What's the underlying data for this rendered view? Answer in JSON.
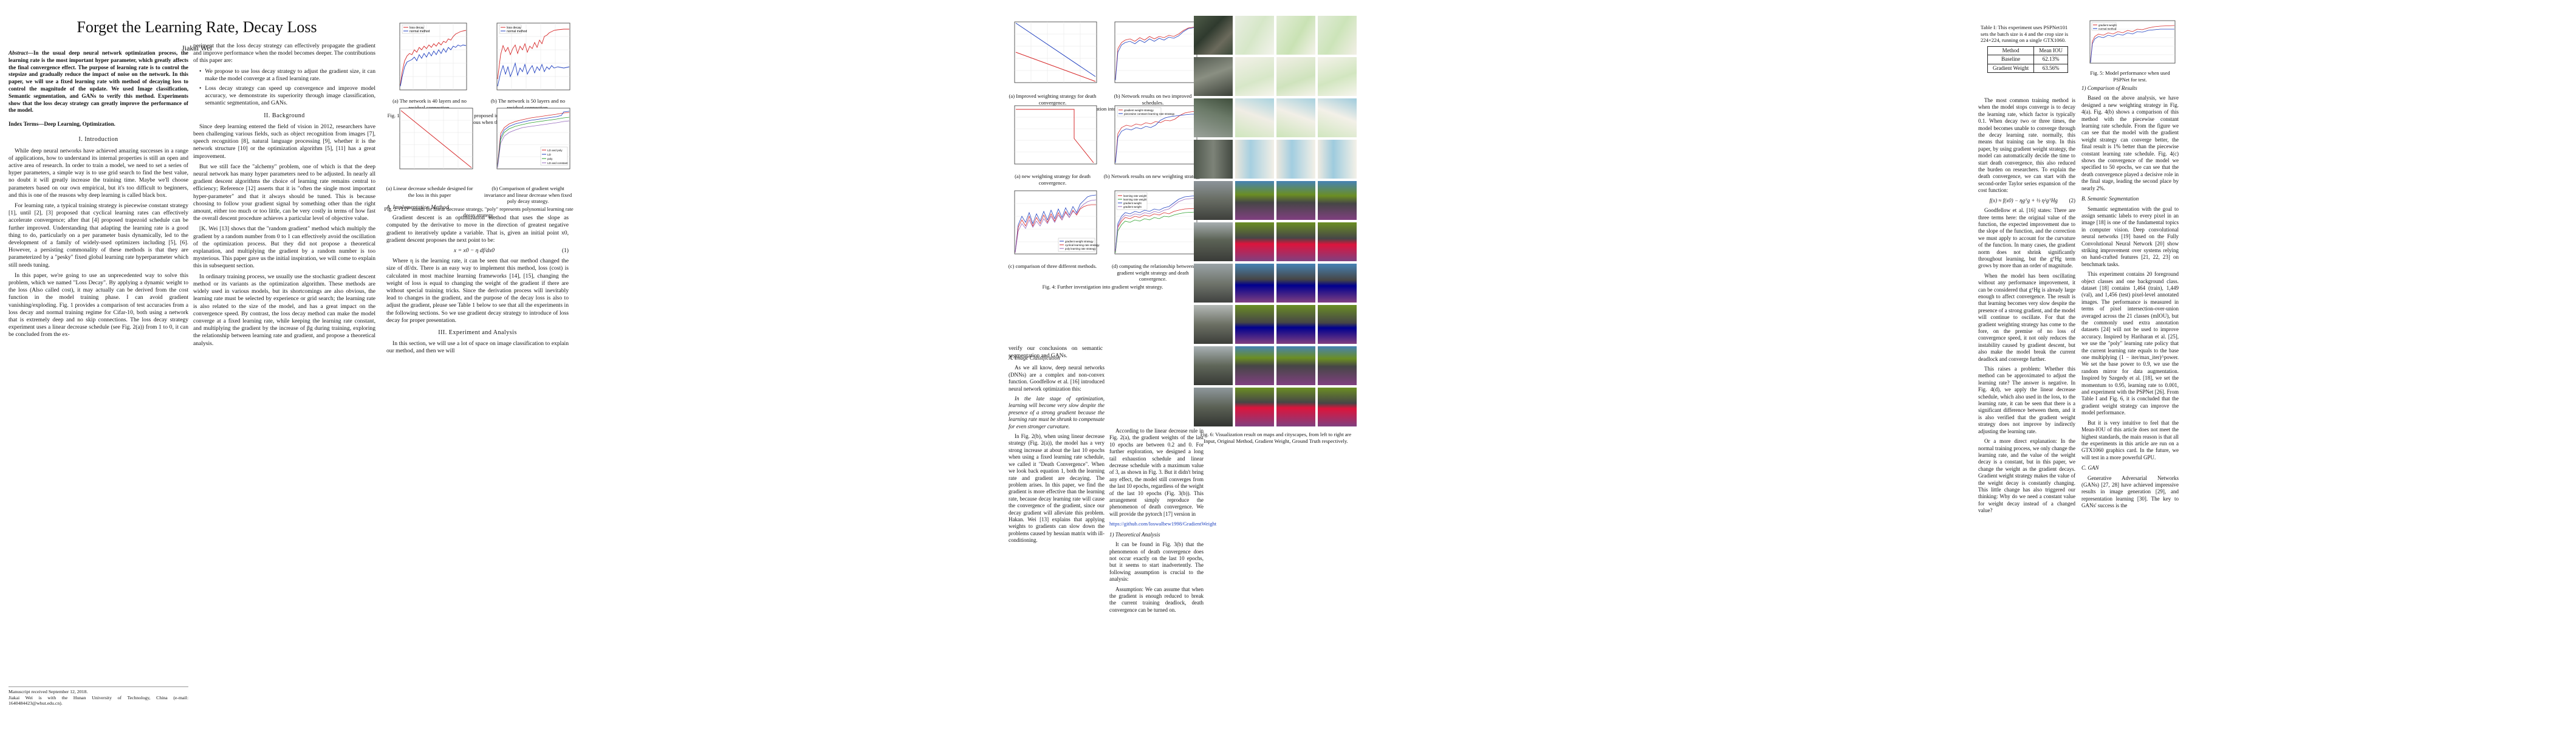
{
  "page1": {
    "title": "Forget the Learning Rate, Decay Loss",
    "author": "Jiakai Wei",
    "abstract_label": "Abstract",
    "abstract": "—In the usual deep neural network optimization process, the learning rate is the most important hyper parameter, which greatly affects the final convergence effect. The purpose of learning rate is to control the stepsize and gradually reduce the impact of noise on the network. In this paper, we will use a fixed learning rate with method of decaying loss to control the magnitude of the update. We used Image classification, Semantic segmentation, and GANs to verify this method. Experiments show that the loss decay strategy can greatly improve the performance of the model.",
    "index_terms": "Index Terms—Deep Learning, Optimization.",
    "sec1": "I. Introduction",
    "intro_p1": "While deep neural networks have achieved amazing successes in a range of applications, how to understand its internal properties is still an open and active area of research. In order to train a model, we need to set a series of hyper parameters, a simple way is to use grid search to find the best value, no doubt it will greatly increase the training time. Maybe we'll choose parameters based on our own empirical, but it's too difficult to beginners, and this is one of the reasons why deep learning is called black box.",
    "intro_p2": "For learning rate, a typical training strategy is piecewise constant strategy [1], until [2], [3] proposed that cyclical learning rates can effectively accelerate convergence; after that [4] proposed trapezoid schedule can be further improved. Understanding that adapting the learning rate is a good thing to do, particularly on a per parameter basis dynamically, led to the development of a family of widely-used optimizers including [5], [6]. However, a persisting commonality of these methods is that they are parameterized by a \"pesky\" fixed global learning rate hyperparameter which still needs tuning.",
    "intro_p3": "In this paper, we're going to use an unprecedented way to solve this problem, which we named \"Loss Decay\". By applying a dynamic weight to the loss (Also called cost), it may actually can be derived from the cost function in the model training phase. I can avoid gradient vanishing/exploding. Fig. 1 provides a comparison of test accuracies from a loss decay and normal training regime for Cifar-10, both using a network that is extremely deep and no skip connections. The loss decay strategy experiment uses a linear decrease schedule (see Fig. 2(a)) from 1 to 0, it can be concluded from the ex-",
    "footnote1": "Manuscript received September 12, 2018.",
    "footnote2": "Jiakai Wei is with the Hunan University of Technology, China (e-mail: 1640484423@whut.edu.cn)."
  },
  "page1b": {
    "cont": "periment that the loss decay strategy can effectively propagate the gradient and improve performance when the model becomes deeper. The contributions of this paper are:",
    "bullet1": "We propose to use loss decay strategy to adjust the gradient size, it can make the model converge at a fixed learning rate.",
    "bullet2": "Loss decay strategy can speed up convergence and improve model accuracy, we demonstrate its superiority through image classification, semantic segmentation, and GANs.",
    "sec2": "II. Background",
    "bg_p1": "Since deep learning entered the field of vision in 2012, researchers have been challenging various fields, such as object recognition from images [7], speech recognition [8], natural language processing [9], whether it is the network structure [10] or the optimization algorithm [5], [11] has a great improvement.",
    "bg_p2": "But we still face the \"alchemy\" problem, one of which is that the deep neural network has many hyper parameters need to be adjusted. In nearly all gradient descent algorithms the choice of learning rate remains central to efficiency; Reference [12] asserts that it is \"often the single most important hyper-parameter\" and that it always should be tuned. This is because choosing to follow your gradient signal by something other than the right amount, either too much or too little, can be very costly in terms of how fast the overall descent procedure achieves a particular level of objective value.",
    "bg_p3": "[K. Wei [13] shows that the \"random gradient\" method which multiply the gradient by a random number from 0 to 1 can effectively avoid the oscillation of the optimization process. But they did not propose a theoretical explanation, and multiplying the gradient by a random number is too mysterious. This paper gave us the initial inspiration, we will come to explain this in subsequent section.",
    "bg_p4": "In ordinary training process, we usually use the stochastic gradient descent method or its variants as the optimization algorithm. These methods are widely used in various models, but its shortcomings are also obvious, the learning rate must be selected by experience or grid search; the learning rate is also related to the size of the model, and has a great impact on the convergence speed. By contrast, the loss decay method can make the model converge at a fixed learning rate, while keeping the learning rate constant, and multiplying the gradient by the increase of βg during training, exploring the relationship between learning rate and gradient, and propose a theoretical analysis."
  },
  "fig1": {
    "caption_a": "(a) The network is 40 layers and no residual connection.",
    "caption_b": "(b) The network is 50 layers and no residual connection.",
    "caption": "Fig. 1: Loss decay represents the method proposed in this paper, it can be seen from the figure that the effect is more obvious when the network depth increases.",
    "legend": [
      "loss decay",
      "normal method"
    ]
  },
  "fig2": {
    "caption_a": "(a) Linear decrease schedule designed for the loss in this paper",
    "caption_b": "(b) Comparison of gradient weight invariance and linear decrease when fixed poly decay strategy.",
    "caption": "Fig. 2: \"LD\" stands for linear decrease strategy, \"poly\" represents polynomial learning rate decay strategy.",
    "legend": [
      "LD and poly",
      "LD",
      "poly",
      "LD and constant"
    ]
  },
  "sec2b": {
    "impl_h": "A. Implementation Method",
    "impl_p": "Gradient descent is an optimization method that uses the slope as computed by the derivative to move in the direction of greatest negative gradient to iteratively update a variable. That is, given an initial point x0, gradient descent proposes the next point to be:",
    "eq1": "x = x0 − η df/dx0",
    "eq1_num": "(1)",
    "impl_p2": "Where η is the learning rate, it can be seen that our method changed the size of df/dx. There is an easy way to implement this method, loss (cost) is calculated in most machine learning frameworks [14], [15], changing the weight of loss is equal to changing the weight of the gradient if there are without special training tricks. Since the derivation process will inevitably lead to changes in the gradient, and the purpose of the decay loss is also to adjust the gradient, please see Table 1 below to see that all the experiments in the following sections. So we use gradient decay strategy to introduce of loss decay for proper presentation.",
    "sec3": "III. Experiment and Analysis",
    "exp_p": "In this section, we will use a lot of space on image classification to explain our method, and then we will"
  },
  "fig3": {
    "caption_a": "(a) Improved weighting strategy for death convergence.",
    "caption_b": "(b) Network results on two improved schedules.",
    "caption": "Fig. 3: Further investigation into death convergence."
  },
  "fig4": {
    "caption_a": "(a) new weighting strategy for death convergence.",
    "caption_b": "(b) Network results on new weighting strategy.",
    "caption_c": "(c) comparison of three different methods.",
    "caption_d": "(d) computing the relationship between gradient weight strategy and death convergence.",
    "caption": "Fig. 4: Further investigation into gradient weight strategy.",
    "legend_b": [
      "gradient weight strategy",
      "piecewise constant learning rate strategy"
    ],
    "legend_c": [
      "gradient weight strategy",
      "cyclical learning rate strategy",
      "poly learning rate strategy"
    ],
    "legend_d": [
      "learning rate weight",
      "learning rate weight",
      "gradient weight",
      "gradient weight"
    ]
  },
  "page2": {
    "verify": "verify our conclusions on semantic segmentation and GANs.",
    "cls_h": "A. Image Classification",
    "cls_p1": "As we all know, deep neural networks (DNNs) are a complex and non-convex function. Goodfellow et al. [16] introduced neural network optimization this:",
    "quote": "In the late stage of optimization, learning will become very slow despite the presence of a strong gradient because the learning rate must be shrunk to compensate for even stronger curvature.",
    "cls_p2": "In Fig. 2(b), when using linear decrease strategy (Fig. 2(a)), the model has a very strong increase at about the last 10 epochs when using a fixed learning rate schedule, we called it \"Death Convergence\". When we look back equation 1, both the learning rate and gradient are decaying. The problem arises. In this paper, we find the gradient is more effective than the learning rate, because decay learning rate will cause the convergence of the gradient, since our decay gradient will alleviate this problem. Hakan. Wei [13] explains that applying weights to gradients can slow down the problems caused by hessian matrix with ill-conditioning.",
    "p2_p1": "According to the linear decrease rule in Fig. 2(a), the gradient weights of the last 10 epochs are between 0.2 and 0. For further exploration, we designed a long tail exhaustion schedule and linear decrease schedule with a maximum value of 3, as shown in Fig. 3. But it didn't bring any effect, the model still converges from the last 10 epochs, regardless of the weight of the last 10 epochs (Fig. 3(b)). This arrangement simply reproduce the phenomenon of death convergence. We will provide the pytorch [17] version in",
    "link": "https://github.com/loswalbew1998/GradientWeight",
    "theory_h": "1) Theoretical Analysis",
    "theory_p": "It can be found in Fig. 3(b) that the phenomenon of death convergence does not occur exactly on the last 10 epochs, but it seems to start inadvertently. The following assumption is crucial to the analysis:",
    "assume": "Assumption: We can assume that when the gradient is enough reduced to break the current training deadlock, death convergence can be turned on."
  },
  "fig6": {
    "caption": "Fig. 6: Visualization result on maps and cityscapes, from left to right are Input, Original Method, Gradient Weight, Ground Truth respectively."
  },
  "page3": {
    "table_caption": "Table I: This experiment uses PSPNet101 sets the batch size is 4 and the crop size is 224×224, running on a single GTX1060.",
    "table_headers": [
      "Method",
      "Mean IOU"
    ],
    "table_rows": [
      [
        "Baseline",
        "62.13%"
      ],
      [
        "Gradient Weight",
        "63.56%"
      ]
    ],
    "p1": "The most common training method is when the model stops converge is to decay the learning rate, which factor is typically 0.1. When decay two or three times, the model becomes unable to converge through the decay learning rate. normally, this means that training can be stop. In this paper, by using gradient weight strategy, the model can automatically decide the time to start death convergence, this also reduced the burden on researchers. To explain the death convergence, we can start with the second-order Taylor series expansion of the cost function:",
    "eq2": "f(x) ≈ f(x0) − ηgᵀg + ½ η²gᵀHg",
    "eq2_num": "(2)",
    "p2": "Goodfellow et al. [16] states: There are three terms here: the original value of the function, the expected improvement due to the slope of the function, and the correction we must apply to account for the curvature of the function. In many cases, the gradient norm does not shrink significantly throughout learning, but the gᵀHg term grows by more than an order of magnitude.",
    "p3": "When the model has been oscillating without any performance improvement, it can be considered that gᵀHg is already large enough to affect convergence. The result is that learning becomes very slow despite the presence of a strong gradient, and the model will continue to oscillate. For that the gradient weighting strategy has come to the fore, on the premise of no loss of convergence speed, it not only reduces the instability caused by gradient descent, but also make the model break the current deadlock and converge further.",
    "p4": "This raises a problem: Whether this method can be approximated to adjust the learning rate? The answer is negative. In Fig. 4(d), we apply the linear decrease schedule, which also used in the loss, to the learning rate, it can be seen that there is a significant difference between them, and it is also verified that the gradient weight strategy does not improve by indirectly adjusting the learning rate.",
    "p5": "Or a more direct explanation: In the normal training process, we only change the learning rate, and the value of the weight decay is a constant, but in this paper, we change the weight as the gradient decays. Gradient weight strategy makes the value of the weight decay is constantly changing. This little change has also triggered our thinking: Why do we need a constant value for weight decay instead of a changed value?",
    "fig5_caption": "Fig. 5: Model performance when used PSPNet for test.",
    "fig5_legend": [
      "gradient weight",
      "normal method"
    ],
    "cmp_h": "1) Comparison of Results",
    "cmp_p": "Based on the above analysis, we have designed a new weighting strategy in Fig. 4(a). Fig. 4(b) shows a comparison of this method with the piecewise constant learning rate schedule. From the figure we can see that the model with the gradient weight strategy can converge better, the final result is 1% better than the piecewise constant learning rate schedule. Fig. 4(c) shows the convergence of the model we specified to 50 epochs, we can see that the death convergence played a decisive role in the final stage, leading the second place by nearly 2%.",
    "seg_h": "B. Semantic Segmentation",
    "seg_p1": "Semantic segmentation with the goal to assign semantic labels to every pixel in an image [18] is one of the fundamental topics in computer vision. Deep convolutional neural networks [19] based on the Fully Convolutional Neural Network [20] show striking improvement over systems relying on hand-crafted features [21, 22, 23] on benchmark tasks.",
    "seg_p2": "This experiment contains 20 foreground object classes and one background class. dataset [18] contains 1,464 (train), 1,449 (val), and 1,456 (test) pixel-level annotated images. The performance is measured in terms of pixel intersection-over-union averaged across the 21 classes (mIOU), but the commonly used extra annotation datasets [24] will not be used to improve accuracy. Inspired by Hariharan et al. [25], we use the \"poly\" learning rate policy that the current learning rate equals to the base one multiplying (1 − iter/max_iter)^power. We set the base power to 0.9, we use the random mirror for data augmentation. Inspired by Szegedy et al. [18], we set the momentum to 0.95, learning rate to 0.001, and experiment with the PSPNet [26]. From Table I and Fig. 6, it is concluded that the gradient weight strategy can improve the model performance.",
    "seg_p3": "But it is very intuitive to feel that the Mean-IOU of this article does not meet the highest standards, the main reason is that all the experiments in this article are run on a GTX1060 graphics card. In the future, we will test in a more powerful GPU.",
    "gan_h": "C. GAN",
    "gan_p": "Generative Adversarial Networks (GANs) [27, 28] have achieved impressive results in image generation [29], and representation learning [30]. The key to GANs' success is the"
  },
  "colors": {
    "red": "#d62728",
    "blue": "#1f3fbf",
    "green": "#2ca02c",
    "purple": "#9467bd",
    "gray": "#888888"
  }
}
